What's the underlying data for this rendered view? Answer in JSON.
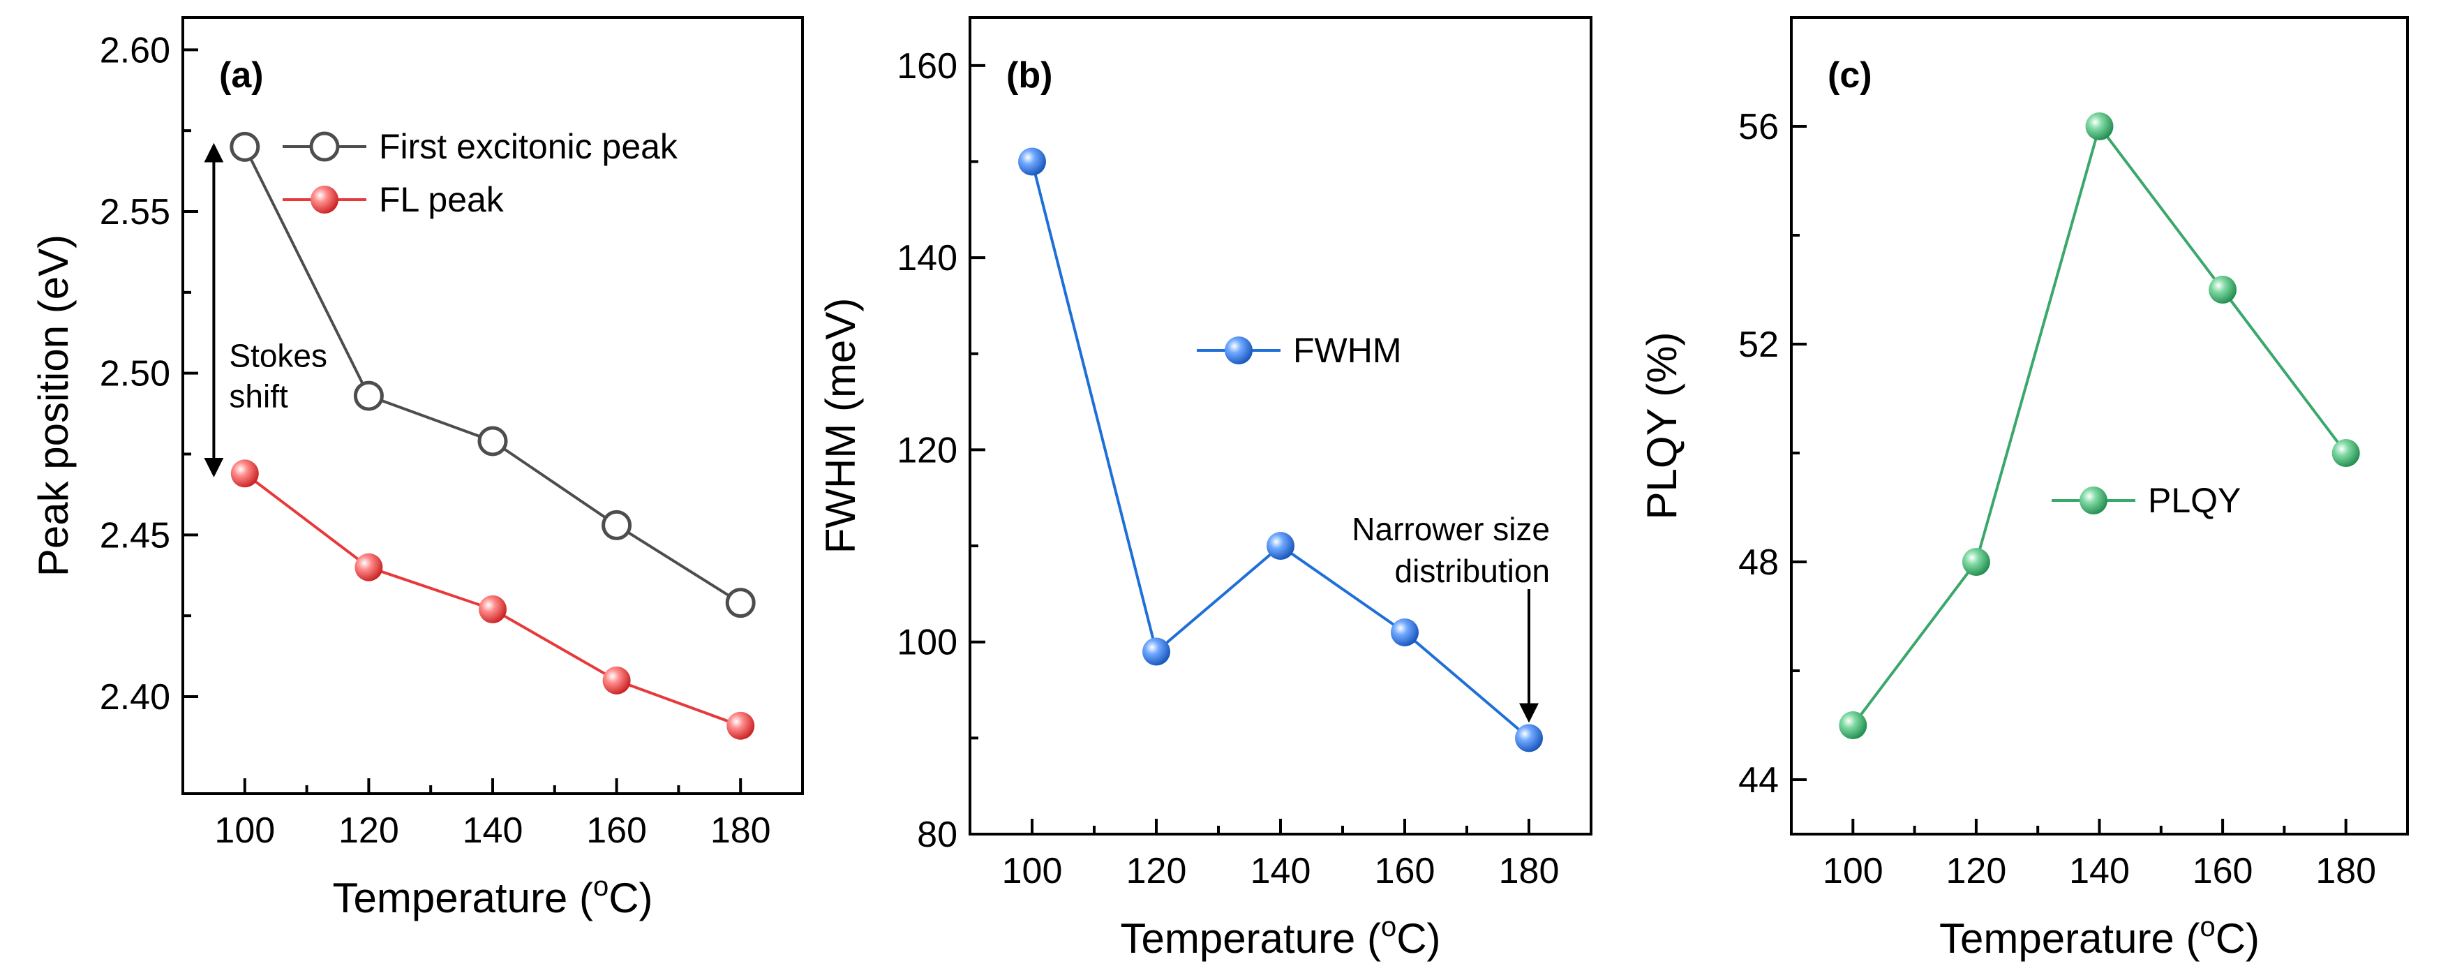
{
  "colors": {
    "axis": "#000000",
    "excitonic": "#4d4d4d",
    "fl": "#e8393a",
    "fwhm": "#1f6fd8",
    "plqy": "#3aa76b"
  },
  "chart_data": [
    {
      "type": "line",
      "panel_label": "(a)",
      "xlabel": "Temperature (",
      "xlabel_sup": "o",
      "xlabel_end": "C)",
      "ylabel": "Peak position (eV)",
      "xlim": [
        90,
        190
      ],
      "ylim": [
        2.37,
        2.61
      ],
      "xticks": [
        100,
        120,
        140,
        160,
        180
      ],
      "xtick_labels": [
        "100",
        "120",
        "140",
        "160",
        "180"
      ],
      "yticks": [
        2.4,
        2.45,
        2.5,
        2.55,
        2.6
      ],
      "ytick_labels": [
        "2.40",
        "2.45",
        "2.50",
        "2.55",
        "2.60"
      ],
      "legend_position": "top-right",
      "series": [
        {
          "name": "First excitonic peak",
          "marker": "open-circle",
          "color": "#4d4d4d",
          "x": [
            100,
            120,
            140,
            160,
            180
          ],
          "y": [
            2.57,
            2.493,
            2.479,
            2.453,
            2.429
          ]
        },
        {
          "name": "FL peak",
          "marker": "filled-circle",
          "color": "#e8393a",
          "x": [
            100,
            120,
            140,
            160,
            180
          ],
          "y": [
            2.469,
            2.44,
            2.427,
            2.405,
            2.391
          ]
        }
      ],
      "annotation": {
        "lines": [
          "Stokes",
          "shift"
        ],
        "type": "double-arrow",
        "x": 95,
        "y_top": 2.57,
        "y_bottom": 2.469
      }
    },
    {
      "type": "line",
      "panel_label": "(b)",
      "xlabel": "Temperature (",
      "xlabel_sup": "o",
      "xlabel_end": "C)",
      "ylabel": "FWHM (meV)",
      "xlim": [
        90,
        190
      ],
      "ylim": [
        80,
        165
      ],
      "xticks": [
        100,
        120,
        140,
        160,
        180
      ],
      "xtick_labels": [
        "100",
        "120",
        "140",
        "160",
        "180"
      ],
      "yticks": [
        80,
        100,
        120,
        140,
        160
      ],
      "ytick_labels": [
        "80",
        "100",
        "120",
        "140",
        "160"
      ],
      "legend_position": "center-right",
      "series": [
        {
          "name": "FWHM",
          "marker": "filled-circle",
          "color": "#1f6fd8",
          "x": [
            100,
            120,
            140,
            160,
            180
          ],
          "y": [
            150,
            99,
            110,
            101,
            90
          ]
        }
      ],
      "annotation": {
        "lines": [
          "Narrower size",
          "distribution"
        ],
        "type": "down-arrow",
        "x": 180,
        "y_top": 105.5,
        "y_bottom": 92
      }
    },
    {
      "type": "line",
      "panel_label": "(c)",
      "xlabel": "Temperature (",
      "xlabel_sup": "o",
      "xlabel_end": "C)",
      "ylabel": "PLQY (%)",
      "xlim": [
        90,
        190
      ],
      "ylim": [
        43,
        58
      ],
      "xticks": [
        100,
        120,
        140,
        160,
        180
      ],
      "xtick_labels": [
        "100",
        "120",
        "140",
        "160",
        "180"
      ],
      "yticks": [
        44,
        48,
        52,
        56
      ],
      "ytick_labels": [
        "44",
        "48",
        "52",
        "56"
      ],
      "legend_position": "center-right",
      "series": [
        {
          "name": "PLQY",
          "marker": "filled-circle",
          "color": "#3aa76b",
          "x": [
            100,
            120,
            140,
            160,
            180
          ],
          "y": [
            45,
            48,
            56,
            53,
            50
          ]
        }
      ]
    }
  ]
}
